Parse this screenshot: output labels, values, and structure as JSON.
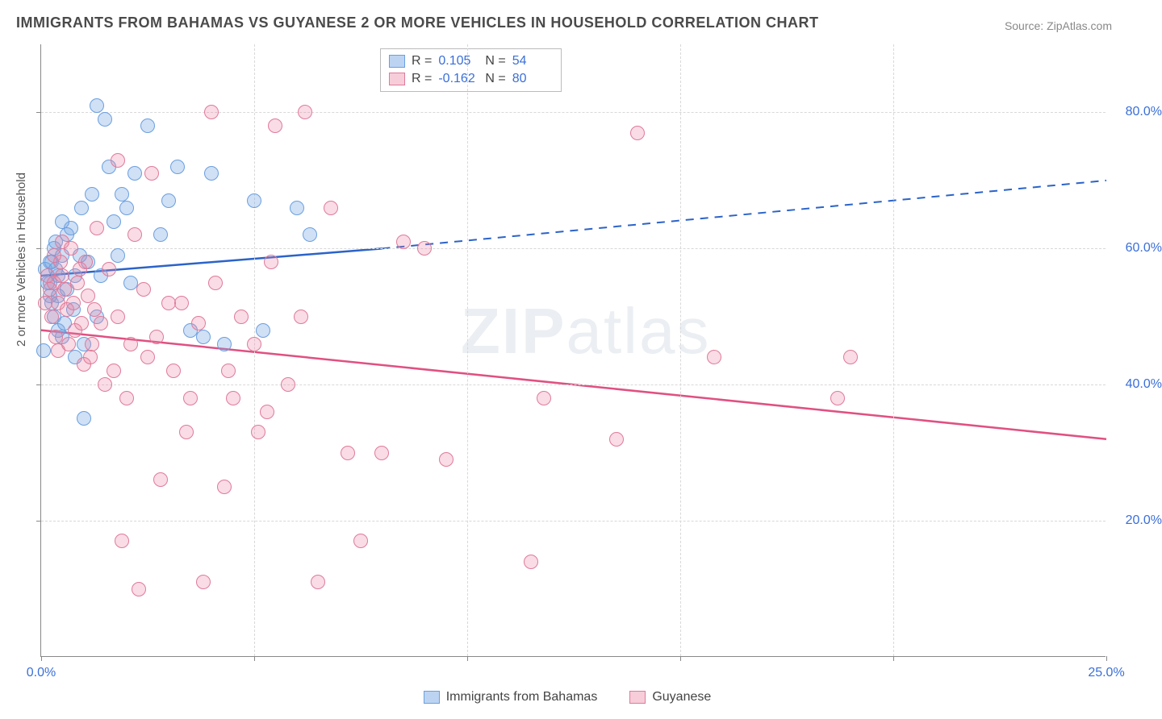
{
  "title": "IMMIGRANTS FROM BAHAMAS VS GUYANESE 2 OR MORE VEHICLES IN HOUSEHOLD CORRELATION CHART",
  "source": "Source: ZipAtlas.com",
  "y_axis_title": "2 or more Vehicles in Household",
  "watermark_bold": "ZIP",
  "watermark_light": "atlas",
  "chart": {
    "type": "scatter",
    "xlim": [
      0,
      25
    ],
    "ylim": [
      0,
      90
    ],
    "x_ticks": [
      0,
      5,
      10,
      15,
      20,
      25
    ],
    "x_tick_labels": [
      "0.0%",
      "",
      "",
      "",
      "",
      "25.0%"
    ],
    "y_ticks": [
      20,
      40,
      60,
      80
    ],
    "y_tick_labels": [
      "20.0%",
      "40.0%",
      "60.0%",
      "80.0%"
    ],
    "background_color": "#ffffff",
    "grid_color": "#d8d8d8",
    "axis_color": "#888888",
    "tick_label_color": "#3a6fd8",
    "marker_radius": 9,
    "marker_stroke_width": 1.5,
    "series": [
      {
        "name": "Immigrants from Bahamas",
        "fill": "rgba(120,165,225,0.35)",
        "stroke": "#6a9fe0",
        "swatch_fill": "#bcd4f2",
        "swatch_stroke": "#6a9fe0",
        "r_value": "0.105",
        "n_value": "54",
        "trend": {
          "x0": 0,
          "y0": 56,
          "x1_solid": 8,
          "y1_solid": 60,
          "x1": 25,
          "y1": 70,
          "color": "#2b63c9",
          "width": 2.5
        },
        "points": [
          [
            0.1,
            57
          ],
          [
            0.2,
            55
          ],
          [
            0.2,
            58
          ],
          [
            0.25,
            52
          ],
          [
            0.3,
            60
          ],
          [
            1.3,
            81
          ],
          [
            1.0,
            46
          ],
          [
            0.8,
            56
          ],
          [
            0.5,
            59
          ],
          [
            0.4,
            53
          ],
          [
            0.6,
            62
          ],
          [
            1.2,
            68
          ],
          [
            1.5,
            79
          ],
          [
            1.7,
            64
          ],
          [
            1.6,
            72
          ],
          [
            2.0,
            66
          ],
          [
            2.2,
            71
          ],
          [
            2.5,
            78
          ],
          [
            1.1,
            58
          ],
          [
            1.3,
            50
          ],
          [
            0.5,
            47
          ],
          [
            0.8,
            44
          ],
          [
            0.35,
            61
          ],
          [
            0.4,
            56
          ],
          [
            0.6,
            54
          ],
          [
            2.8,
            62
          ],
          [
            3.2,
            72
          ],
          [
            3.0,
            67
          ],
          [
            3.5,
            48
          ],
          [
            3.8,
            47
          ],
          [
            4.0,
            71
          ],
          [
            4.3,
            46
          ],
          [
            5.2,
            48
          ],
          [
            5.0,
            67
          ],
          [
            6.0,
            66
          ],
          [
            6.3,
            62
          ],
          [
            1.0,
            35
          ],
          [
            0.3,
            50
          ],
          [
            0.9,
            59
          ],
          [
            1.4,
            56
          ],
          [
            0.7,
            63
          ],
          [
            0.5,
            64
          ],
          [
            0.4,
            48
          ],
          [
            0.25,
            58
          ],
          [
            0.15,
            55
          ],
          [
            0.2,
            53
          ],
          [
            0.05,
            45
          ],
          [
            0.35,
            57
          ],
          [
            1.8,
            59
          ],
          [
            2.1,
            55
          ],
          [
            1.9,
            68
          ],
          [
            0.95,
            66
          ],
          [
            0.75,
            51
          ],
          [
            0.55,
            49
          ]
        ]
      },
      {
        "name": "Guyanese",
        "fill": "rgba(235,130,160,0.28)",
        "stroke": "#e07a9a",
        "swatch_fill": "#f6cdd9",
        "swatch_stroke": "#e07a9a",
        "r_value": "-0.162",
        "n_value": "80",
        "trend": {
          "x0": 0,
          "y0": 48,
          "x1_solid": 25,
          "y1_solid": 32,
          "x1": 25,
          "y1": 32,
          "color": "#e05082",
          "width": 2.5
        },
        "points": [
          [
            0.2,
            54
          ],
          [
            0.3,
            55
          ],
          [
            0.4,
            52
          ],
          [
            0.5,
            56
          ],
          [
            0.6,
            51
          ],
          [
            0.8,
            48
          ],
          [
            1.0,
            43
          ],
          [
            1.2,
            46
          ],
          [
            1.5,
            40
          ],
          [
            1.7,
            42
          ],
          [
            2.0,
            38
          ],
          [
            2.2,
            62
          ],
          [
            2.5,
            44
          ],
          [
            2.8,
            26
          ],
          [
            3.0,
            52
          ],
          [
            3.3,
            52
          ],
          [
            3.5,
            38
          ],
          [
            3.8,
            11
          ],
          [
            4.0,
            80
          ],
          [
            4.3,
            25
          ],
          [
            4.5,
            38
          ],
          [
            5.0,
            46
          ],
          [
            5.3,
            36
          ],
          [
            5.5,
            78
          ],
          [
            6.2,
            80
          ],
          [
            6.5,
            11
          ],
          [
            6.8,
            66
          ],
          [
            7.2,
            30
          ],
          [
            7.5,
            17
          ],
          [
            8.0,
            30
          ],
          [
            8.5,
            61
          ],
          [
            9.0,
            60
          ],
          [
            9.5,
            29
          ],
          [
            11.5,
            14
          ],
          [
            11.8,
            38
          ],
          [
            14.0,
            77
          ],
          [
            13.5,
            32
          ],
          [
            15.8,
            44
          ],
          [
            19.0,
            44
          ],
          [
            18.7,
            38
          ],
          [
            1.8,
            73
          ],
          [
            1.9,
            17
          ],
          [
            2.3,
            10
          ],
          [
            2.6,
            71
          ],
          [
            0.4,
            45
          ],
          [
            0.7,
            60
          ],
          [
            0.9,
            57
          ],
          [
            1.1,
            53
          ],
          [
            1.3,
            63
          ],
          [
            1.4,
            49
          ],
          [
            1.6,
            57
          ],
          [
            1.8,
            50
          ],
          [
            2.1,
            46
          ],
          [
            2.4,
            54
          ],
          [
            2.7,
            47
          ],
          [
            3.1,
            42
          ],
          [
            3.4,
            33
          ],
          [
            3.7,
            49
          ],
          [
            4.1,
            55
          ],
          [
            4.4,
            42
          ],
          [
            4.7,
            50
          ],
          [
            5.1,
            33
          ],
          [
            5.4,
            58
          ],
          [
            5.8,
            40
          ],
          [
            6.1,
            50
          ],
          [
            0.25,
            50
          ],
          [
            0.35,
            47
          ],
          [
            0.45,
            58
          ],
          [
            0.55,
            54
          ],
          [
            0.65,
            46
          ],
          [
            0.75,
            52
          ],
          [
            0.85,
            55
          ],
          [
            0.95,
            49
          ],
          [
            1.05,
            58
          ],
          [
            1.15,
            44
          ],
          [
            1.25,
            51
          ],
          [
            0.15,
            56
          ],
          [
            0.1,
            52
          ],
          [
            0.3,
            59
          ],
          [
            0.5,
            61
          ]
        ]
      }
    ]
  },
  "stats_box_labels": {
    "R": "R =",
    "N": "N ="
  },
  "legend": {
    "series1_label": "Immigrants from Bahamas",
    "series2_label": "Guyanese"
  }
}
